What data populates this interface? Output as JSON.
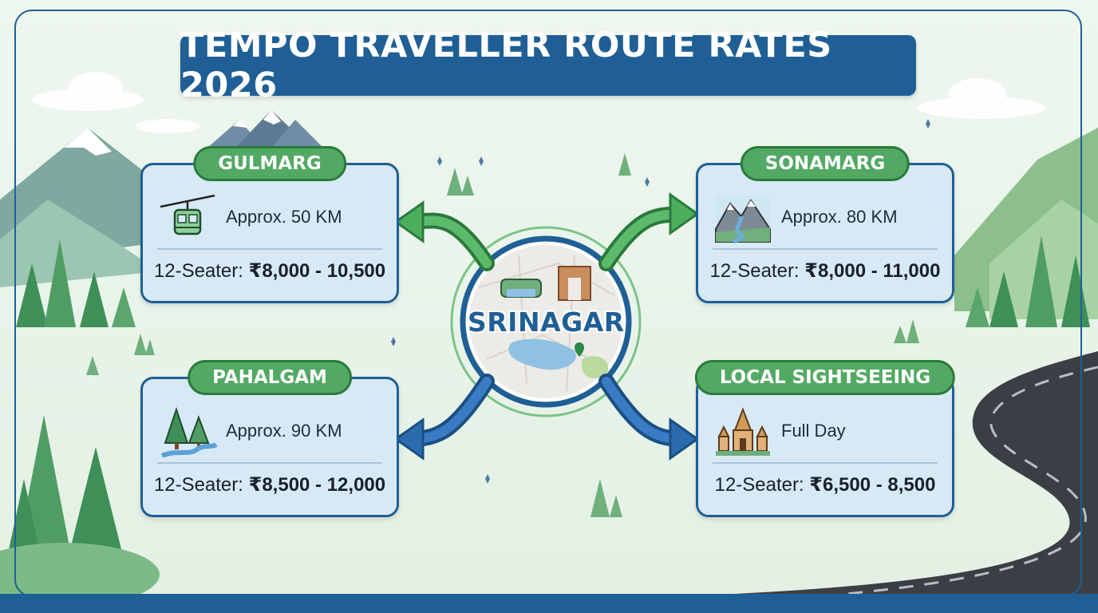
{
  "title": "TEMPO TRAVELLER ROUTE RATES 2026",
  "hub": {
    "name": "SRINAGAR"
  },
  "routes": [
    {
      "name": "GULMARG",
      "distance": "Approx. 50 KM",
      "price_label": "12-Seater:",
      "price": "₹8,000 - 10,500",
      "icon": "cable-car-icon"
    },
    {
      "name": "SONAMARG",
      "distance": "Approx. 80 KM",
      "price_label": "12-Seater:",
      "price": "₹8,000 - 11,000",
      "icon": "waterfall-mountain-icon"
    },
    {
      "name": "PAHALGAM",
      "distance": "Approx. 90 KM",
      "price_label": "12-Seater:",
      "price": "₹8,500 - 12,000",
      "icon": "pine-river-icon"
    },
    {
      "name": "LOCAL SIGHTSEEING",
      "distance": "Full Day",
      "price_label": "12-Seater:",
      "price": "₹6,500 - 8,500",
      "icon": "temple-icon"
    }
  ],
  "colors": {
    "primary_blue": "#1f5f96",
    "tag_green": "#52a963",
    "card_fill": "#d8e9f6",
    "arrow_green": "#4caf5d",
    "arrow_blue": "#2b6cb0"
  }
}
